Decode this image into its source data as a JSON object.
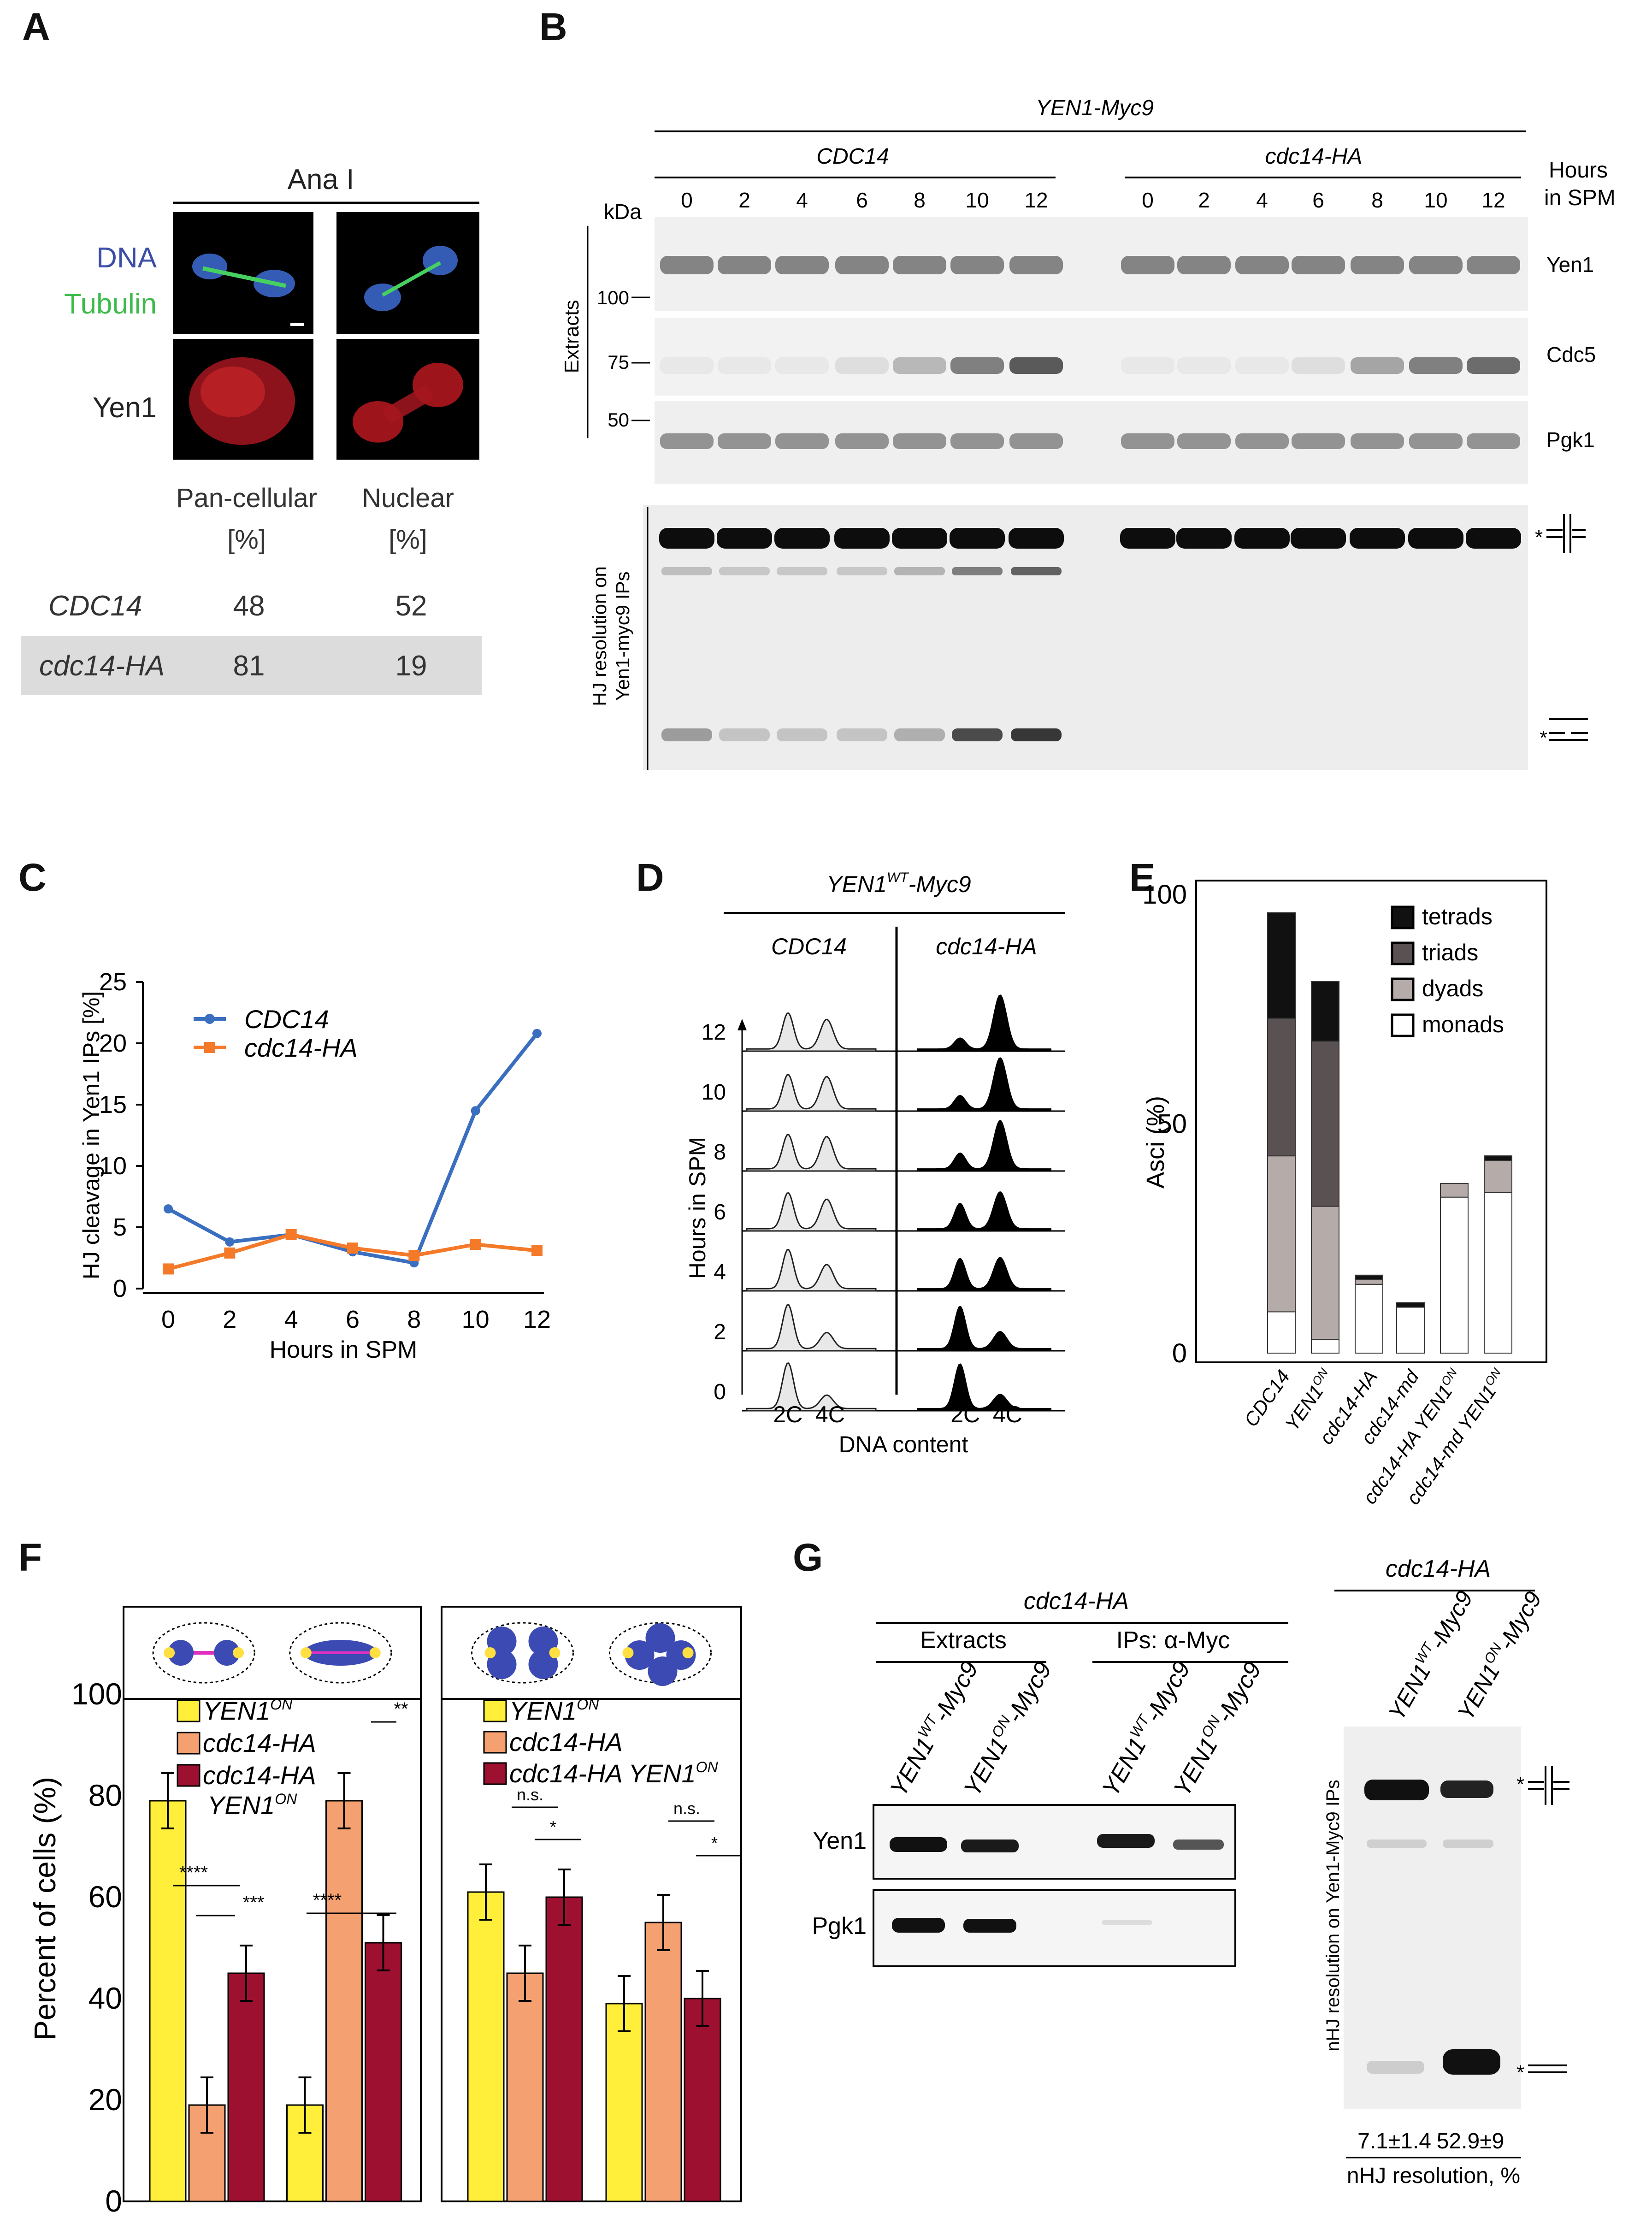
{
  "panels": {
    "A": {
      "label": "A",
      "header": "Ana I",
      "channel_dna": "DNA",
      "channel_tubulin": "Tubulin",
      "channel_yen1": "Yen1",
      "col1": "Pan-cellular",
      "col2": "Nuclear",
      "unit": "[%]",
      "rows": [
        {
          "strain": "CDC14",
          "pan": "48",
          "nuclear": "52"
        },
        {
          "strain": "cdc14-HA",
          "pan": "81",
          "nuclear": "19"
        }
      ]
    },
    "B": {
      "label": "B",
      "title": "YEN1-Myc9",
      "group1": "CDC14",
      "group2": "cdc14-HA",
      "hours_label_1": "Hours",
      "hours_label_2": "in SPM",
      "kda": "kDa",
      "lanes": [
        "0",
        "2",
        "4",
        "6",
        "8",
        "10",
        "12"
      ],
      "markers": [
        "100",
        "75",
        "50"
      ],
      "extracts": "Extracts",
      "hj_label_1": "HJ resolution on",
      "hj_label_2": "Yen1-myc9 IPs",
      "bands": [
        "Yen1",
        "Cdc5",
        "Pgk1"
      ],
      "asterisk": "*"
    },
    "C": {
      "label": "C"
    },
    "D": {
      "label": "D",
      "title": "YEN1",
      "title_sup": "WT",
      "title_suffix": "-Myc9",
      "col1": "CDC14",
      "col2": "cdc14-HA",
      "yaxis": "Hours in SPM",
      "hours": [
        "12",
        "10",
        "8",
        "6",
        "4",
        "2",
        "0"
      ],
      "x_ticks": "2C  4C",
      "xaxis": "DNA content"
    },
    "E": {
      "label": "E"
    },
    "F": {
      "label": "F",
      "yaxis": "Percent of cells (%)",
      "y_ticks": [
        "100",
        "80",
        "60",
        "40",
        "20",
        "0"
      ],
      "legend_left": [
        {
          "name": "YEN1",
          "sup": "ON"
        },
        {
          "name": "cdc14-HA",
          "sup": ""
        },
        {
          "name": "cdc14-HA",
          "sup": ""
        },
        {
          "name": "YEN1",
          "sup": "ON"
        }
      ],
      "legend_right": [
        {
          "name": "YEN1",
          "sup": "ON"
        },
        {
          "name": "cdc14-HA",
          "sup": ""
        },
        {
          "name": "cdc14-HA YEN1",
          "sup": "ON"
        }
      ],
      "sig_left": [
        "****",
        "***",
        "****",
        "**"
      ],
      "sig_right": [
        "n.s.",
        "*",
        "n.s.",
        "*"
      ],
      "colors": {
        "yellow": "#ffef3a",
        "orange": "#f4a070",
        "red": "#9e1030"
      }
    },
    "G": {
      "label": "G",
      "title_left": "cdc14-HA",
      "extracts": "Extracts",
      "ips": "IPs: α-Myc",
      "lane_labels": [
        {
          "a": "YEN1",
          "sup": "WT",
          "b": "-Myc9"
        },
        {
          "a": "YEN1",
          "sup": "ON",
          "b": "-Myc9"
        },
        {
          "a": "YEN1",
          "sup": "WT",
          "b": "-Myc9"
        },
        {
          "a": "YEN1",
          "sup": "ON",
          "b": "-Myc9"
        }
      ],
      "bands": [
        "Yen1",
        "Pgk1"
      ],
      "title_right": "cdc14-HA",
      "right_lanes": [
        {
          "a": "YEN1",
          "sup": "WT",
          "b": "-Myc9"
        },
        {
          "a": "YEN1",
          "sup": "ON",
          "b": "-Myc9"
        }
      ],
      "right_yaxis": "nHJ resolution on Yen1-Myc9 IPs",
      "values": [
        "7.1±1.4",
        "52.9±9"
      ],
      "footer": "nHJ resolution, %",
      "asterisk": "*"
    }
  },
  "chart_data": [
    {
      "id": "C",
      "type": "line",
      "x": [
        0,
        2,
        4,
        6,
        8,
        10,
        12
      ],
      "series": [
        {
          "name": "CDC14",
          "color": "#3a6fc0",
          "values": [
            6.5,
            3.8,
            4.4,
            3.0,
            2.1,
            14.5,
            20.8
          ]
        },
        {
          "name": "cdc14-HA",
          "color": "#f47a2a",
          "values": [
            1.6,
            2.9,
            4.4,
            3.3,
            2.7,
            3.6,
            3.1
          ]
        }
      ],
      "xlabel": "Hours in SPM",
      "ylabel": "HJ cleavage in Yen1 IPs [%]",
      "xlim": [
        0,
        12
      ],
      "ylim": [
        0,
        25
      ],
      "x_ticks": [
        "0",
        "2",
        "4",
        "6",
        "8",
        "10",
        "12"
      ],
      "y_ticks": [
        "0",
        "5",
        "10",
        "15",
        "20",
        "25"
      ]
    },
    {
      "id": "E",
      "type": "bar",
      "stacked": true,
      "categories": [
        "CDC14",
        "YEN1",
        "cdc14-HA",
        "cdc14-md",
        "cdc14-HA YEN1",
        "cdc14-md YEN1"
      ],
      "category_sup": [
        "",
        "ON",
        "",
        "",
        "ON",
        "ON"
      ],
      "series": [
        {
          "name": "monads",
          "color": "#ffffff",
          "values": [
            9,
            3,
            15,
            10,
            34,
            35
          ]
        },
        {
          "name": "dyads",
          "color": "#b5aba9",
          "values": [
            34,
            29,
            1,
            0,
            3,
            7
          ]
        },
        {
          "name": "triads",
          "color": "#5a5152",
          "values": [
            30,
            36,
            0,
            0,
            0,
            0
          ]
        },
        {
          "name": "tetrads",
          "color": "#111111",
          "values": [
            23,
            13,
            1,
            1,
            0,
            1
          ]
        }
      ],
      "ylabel": "Asci (%)",
      "ylim": [
        0,
        100
      ],
      "y_ticks": [
        "0",
        "50",
        "100"
      ]
    },
    {
      "id": "F",
      "type": "bar",
      "panels": [
        {
          "groups": [
            "two-nucleus",
            "elongated"
          ],
          "series": [
            {
              "name": "YEN1 ON",
              "values": [
                79,
                19
              ]
            },
            {
              "name": "cdc14-HA",
              "values": [
                19,
                79
              ]
            },
            {
              "name": "cdc14-HA YEN1 ON",
              "values": [
                45,
                51
              ]
            }
          ]
        },
        {
          "groups": [
            "tetranucleate-a",
            "tetranucleate-b"
          ],
          "series": [
            {
              "name": "YEN1 ON",
              "values": [
                61,
                39
              ]
            },
            {
              "name": "cdc14-HA",
              "values": [
                45,
                55
              ]
            },
            {
              "name": "cdc14-HA YEN1 ON",
              "values": [
                60,
                40
              ]
            }
          ]
        }
      ],
      "ylabel": "Percent of cells (%)",
      "ylim": [
        0,
        100
      ]
    }
  ]
}
